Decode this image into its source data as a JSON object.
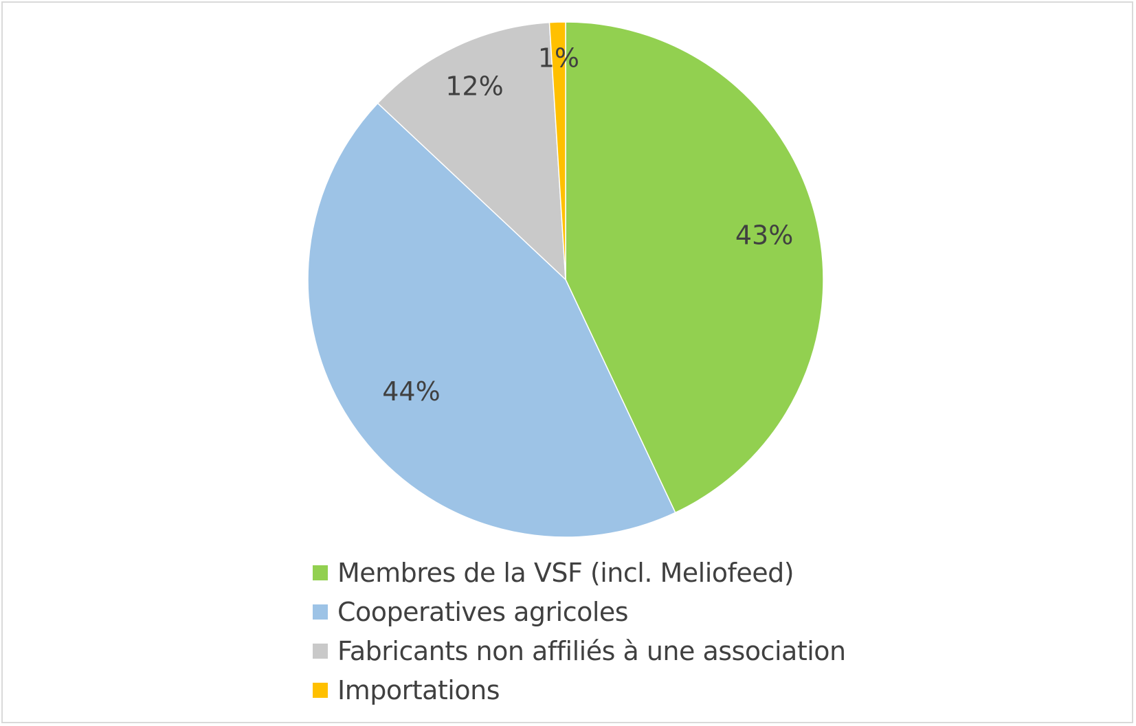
{
  "chart_data": {
    "type": "pie",
    "categories": [
      "Membres de la VSF (incl. Meliofeed)",
      "Cooperatives agricoles",
      "Fabricants non affiliés à une association",
      "Importations"
    ],
    "values": [
      43,
      44,
      12,
      1
    ],
    "data_labels": [
      "43%",
      "44%",
      "12%",
      "1%"
    ],
    "colors": [
      "#92d050",
      "#9dc3e6",
      "#c9c9c9",
      "#ffc000"
    ],
    "legend_position": "bottom",
    "start_angle_deg": 0,
    "direction": "clockwise"
  }
}
